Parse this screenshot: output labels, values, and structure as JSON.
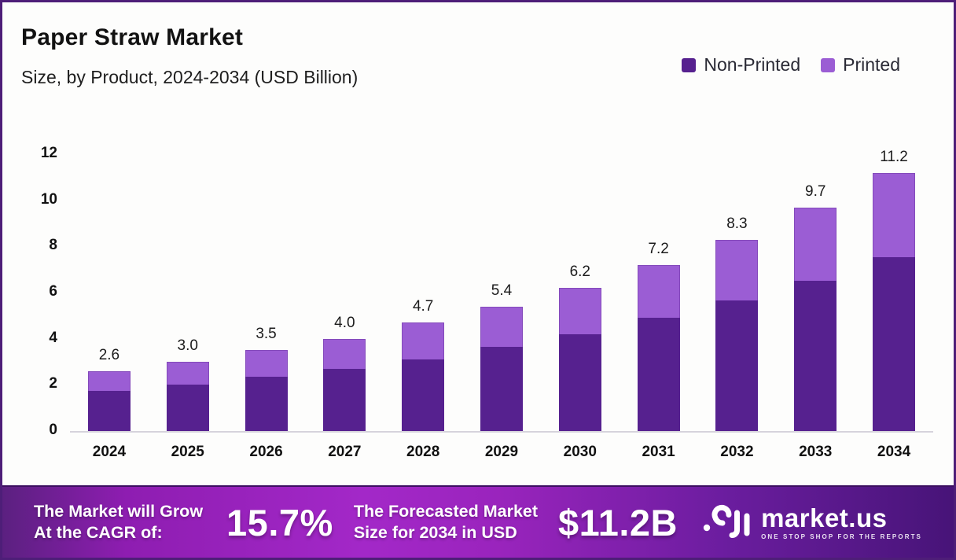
{
  "header": {
    "title": "Paper Straw Market",
    "subtitle": "Size, by Product, 2024-2034 (USD Billion)"
  },
  "chart_data": {
    "type": "bar",
    "stacked": true,
    "title": "Paper Straw Market",
    "units": "USD Billion",
    "categories": [
      "2024",
      "2025",
      "2026",
      "2027",
      "2028",
      "2029",
      "2030",
      "2031",
      "2032",
      "2033",
      "2034"
    ],
    "series": [
      {
        "name": "Non-Printed",
        "color": "#56218f",
        "values": [
          1.75,
          2.0,
          2.35,
          2.7,
          3.1,
          3.65,
          4.2,
          4.9,
          5.65,
          6.5,
          7.55
        ]
      },
      {
        "name": "Printed",
        "color": "#9b5dd4",
        "values": [
          0.85,
          1.0,
          1.15,
          1.3,
          1.6,
          1.75,
          2.0,
          2.3,
          2.65,
          3.2,
          3.65
        ]
      }
    ],
    "totals_labels": [
      "2.6",
      "3.0",
      "3.5",
      "4.0",
      "4.7",
      "5.4",
      "6.2",
      "7.2",
      "8.3",
      "9.7",
      "11.2"
    ],
    "xlabel": "",
    "ylabel": "",
    "ylim": [
      0,
      12
    ],
    "ytick_step": 2,
    "grid": false,
    "legend_position": "top-right"
  },
  "banner": {
    "cagr_label_line1": "The Market will Grow",
    "cagr_label_line2": "At the CAGR of:",
    "cagr_value": "15.7%",
    "forecast_label_line1": "The Forecasted Market",
    "forecast_label_line2": "Size for 2034 in USD",
    "forecast_value": "$11.2B",
    "brand_name": "market.us",
    "brand_tagline": "ONE STOP SHOP FOR THE REPORTS"
  },
  "colors": {
    "non_printed": "#56218f",
    "printed": "#9b5dd4",
    "frame_border": "#4e1e78",
    "banner_gradient_left": "#5b2080",
    "banner_gradient_mid": "#a328c8",
    "banner_gradient_right": "#471478"
  }
}
